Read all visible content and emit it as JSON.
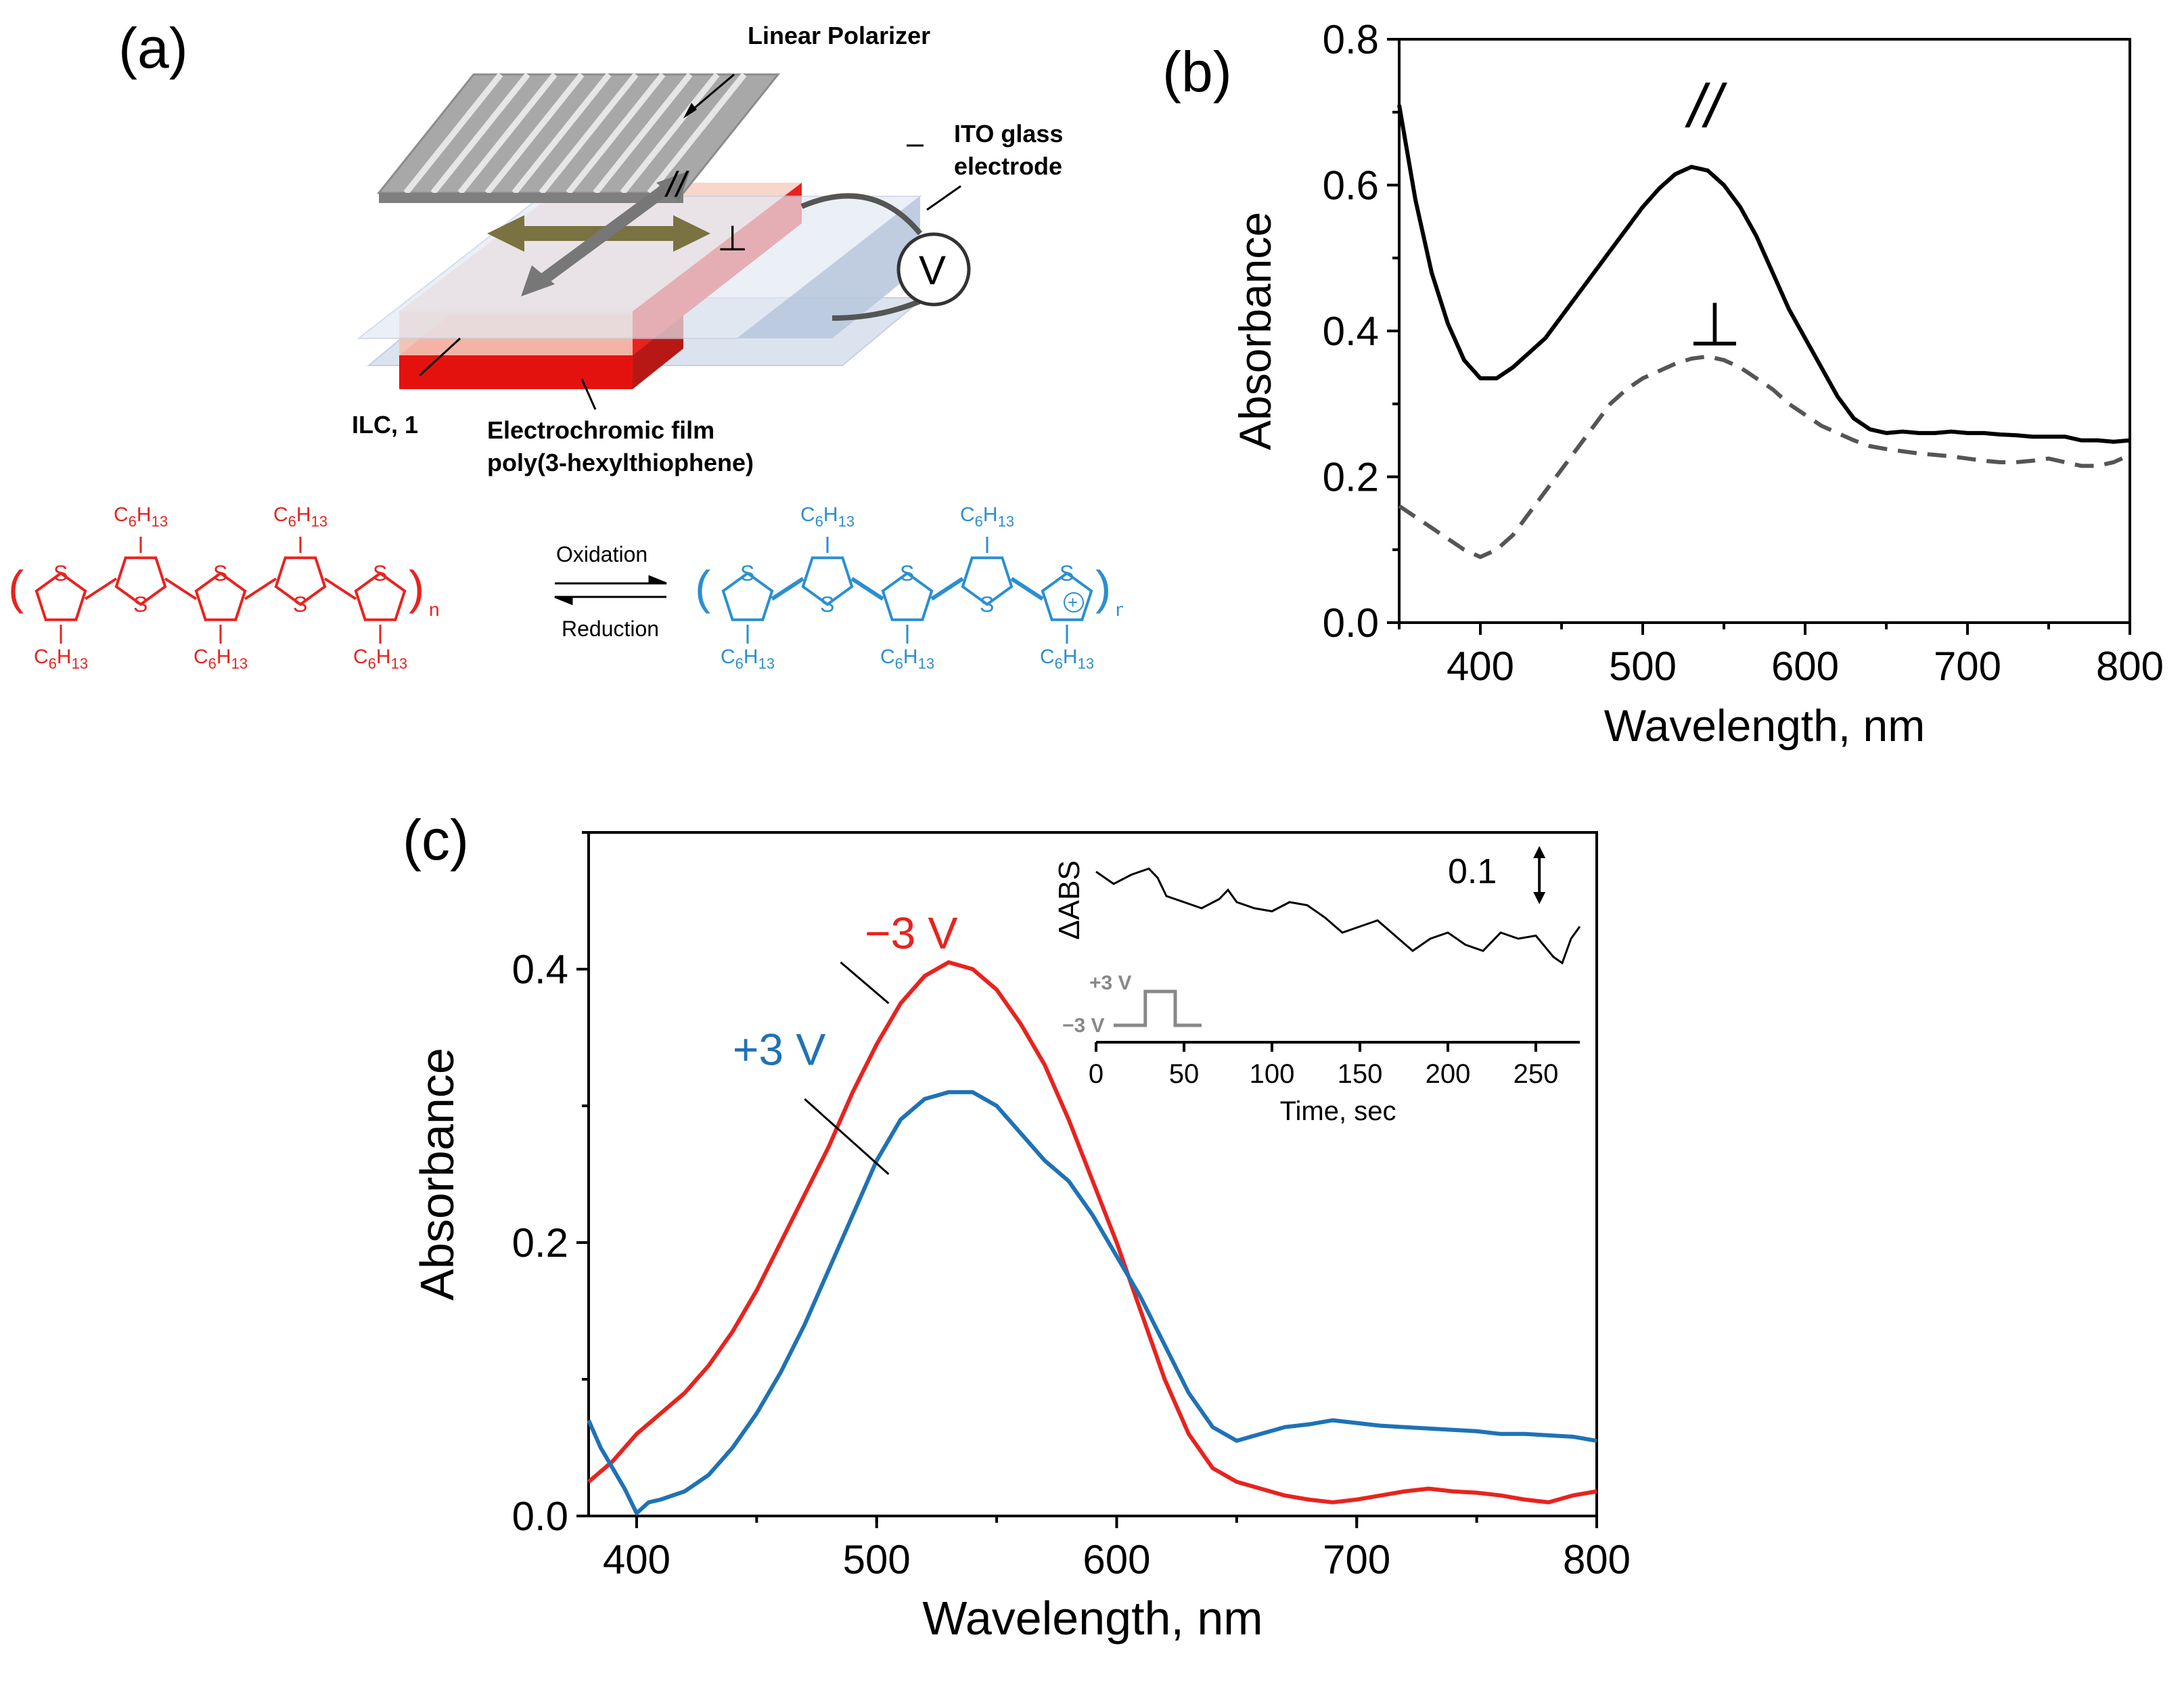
{
  "panel_a": {
    "label": "(a)",
    "labels": {
      "polarizer": "Linear Polarizer",
      "ito_line1": "ITO glass",
      "ito_line2": "electrode",
      "ilc": "ILC, 1",
      "film_line1": "Electrochromic film",
      "film_line2": "poly(3-hexylthiophene)",
      "parallel": "//",
      "perp": "⊥",
      "voltage": "V"
    },
    "scheme": {
      "oxidation": "Oxidation",
      "reduction": "Reduction",
      "substituent": "C6H13",
      "ring_atom": "S",
      "repeat": "n",
      "charge": "+"
    },
    "colors": {
      "neutral": "#e8231f",
      "oxidized": "#2a8fd0",
      "red_film": "#e8231f"
    }
  },
  "chart_data": [
    {
      "id": "b",
      "type": "line",
      "panel_label": "(b)",
      "xlabel": "Wavelength, nm",
      "ylabel": "Absorbance",
      "xlim": [
        350,
        800
      ],
      "ylim": [
        0.0,
        0.8
      ],
      "xticks": [
        "400",
        "500",
        "600",
        "700",
        "800"
      ],
      "yticks": [
        "0.0",
        "0.2",
        "0.4",
        "0.6",
        "0.8"
      ],
      "annotations": {
        "parallel": "//",
        "perp": "⊥"
      },
      "series": [
        {
          "name": "parallel",
          "color": "#000000",
          "dash": "solid",
          "x": [
            350,
            360,
            370,
            380,
            390,
            400,
            410,
            420,
            430,
            440,
            450,
            460,
            470,
            480,
            490,
            500,
            510,
            520,
            530,
            540,
            550,
            560,
            570,
            580,
            590,
            600,
            610,
            620,
            630,
            640,
            650,
            660,
            670,
            680,
            690,
            700,
            710,
            720,
            730,
            740,
            750,
            760,
            770,
            780,
            790,
            800
          ],
          "y": [
            0.71,
            0.58,
            0.48,
            0.41,
            0.36,
            0.335,
            0.335,
            0.35,
            0.37,
            0.39,
            0.42,
            0.45,
            0.48,
            0.51,
            0.54,
            0.57,
            0.595,
            0.615,
            0.625,
            0.62,
            0.6,
            0.57,
            0.53,
            0.48,
            0.43,
            0.39,
            0.35,
            0.31,
            0.28,
            0.265,
            0.26,
            0.262,
            0.26,
            0.26,
            0.262,
            0.26,
            0.26,
            0.258,
            0.257,
            0.255,
            0.255,
            0.255,
            0.25,
            0.25,
            0.248,
            0.25
          ]
        },
        {
          "name": "perpendicular",
          "color": "#555555",
          "dash": "dashed",
          "x": [
            350,
            360,
            370,
            380,
            390,
            400,
            410,
            420,
            430,
            440,
            450,
            460,
            470,
            480,
            490,
            500,
            510,
            520,
            530,
            540,
            550,
            560,
            570,
            580,
            590,
            600,
            610,
            620,
            630,
            640,
            650,
            660,
            670,
            680,
            690,
            700,
            710,
            720,
            730,
            740,
            750,
            760,
            770,
            780,
            790,
            800
          ],
          "y": [
            0.16,
            0.145,
            0.13,
            0.115,
            0.1,
            0.09,
            0.1,
            0.12,
            0.15,
            0.18,
            0.21,
            0.24,
            0.27,
            0.3,
            0.32,
            0.335,
            0.345,
            0.355,
            0.362,
            0.365,
            0.36,
            0.35,
            0.335,
            0.32,
            0.3,
            0.285,
            0.27,
            0.26,
            0.25,
            0.242,
            0.238,
            0.235,
            0.232,
            0.23,
            0.228,
            0.225,
            0.222,
            0.22,
            0.22,
            0.222,
            0.225,
            0.22,
            0.215,
            0.215,
            0.22,
            0.23
          ]
        }
      ]
    },
    {
      "id": "c",
      "type": "line",
      "panel_label": "(c)",
      "xlabel": "Wavelength, nm",
      "ylabel": "Absorbance",
      "xlim": [
        380,
        800
      ],
      "ylim": [
        0.0,
        0.5
      ],
      "xticks": [
        "400",
        "500",
        "600",
        "700",
        "800"
      ],
      "yticks": [
        "0.0",
        "0.2",
        "0.4"
      ],
      "series": [
        {
          "name": "−3 V",
          "color": "#e8231f",
          "x": [
            380,
            390,
            400,
            410,
            420,
            430,
            440,
            450,
            460,
            470,
            480,
            490,
            500,
            510,
            520,
            530,
            540,
            550,
            560,
            570,
            580,
            590,
            600,
            610,
            620,
            630,
            640,
            650,
            660,
            670,
            680,
            690,
            700,
            710,
            720,
            730,
            740,
            750,
            760,
            770,
            780,
            790,
            800
          ],
          "y": [
            0.025,
            0.04,
            0.06,
            0.075,
            0.09,
            0.11,
            0.135,
            0.165,
            0.2,
            0.235,
            0.27,
            0.31,
            0.345,
            0.375,
            0.395,
            0.405,
            0.4,
            0.385,
            0.36,
            0.33,
            0.29,
            0.245,
            0.2,
            0.15,
            0.1,
            0.06,
            0.035,
            0.025,
            0.02,
            0.015,
            0.012,
            0.01,
            0.012,
            0.015,
            0.018,
            0.02,
            0.018,
            0.017,
            0.015,
            0.012,
            0.01,
            0.015,
            0.018
          ]
        },
        {
          "name": "+3 V",
          "color": "#1f72b5",
          "x": [
            380,
            385,
            390,
            395,
            400,
            405,
            410,
            420,
            430,
            440,
            450,
            460,
            470,
            480,
            490,
            500,
            510,
            520,
            530,
            540,
            550,
            560,
            570,
            580,
            590,
            600,
            610,
            620,
            630,
            640,
            650,
            660,
            670,
            680,
            690,
            700,
            710,
            720,
            730,
            740,
            750,
            760,
            770,
            780,
            790,
            800
          ],
          "y": [
            0.07,
            0.05,
            0.035,
            0.02,
            0.002,
            0.01,
            0.012,
            0.018,
            0.03,
            0.05,
            0.075,
            0.105,
            0.14,
            0.18,
            0.22,
            0.26,
            0.29,
            0.305,
            0.31,
            0.31,
            0.3,
            0.28,
            0.26,
            0.245,
            0.22,
            0.19,
            0.16,
            0.125,
            0.09,
            0.065,
            0.055,
            0.06,
            0.065,
            0.067,
            0.07,
            0.068,
            0.066,
            0.065,
            0.064,
            0.063,
            0.062,
            0.06,
            0.06,
            0.059,
            0.058,
            0.055
          ]
        }
      ],
      "annotations": {
        "minus": "−3 V",
        "plus": "+3 V"
      },
      "inset": {
        "type": "line",
        "xlabel": "Time, sec",
        "ylabel": "ΔABS",
        "xlim": [
          0,
          275
        ],
        "xticks": [
          "0",
          "50",
          "100",
          "150",
          "200",
          "250"
        ],
        "scale_bar": "0.1",
        "pulse_labels": {
          "high": "+3 V",
          "low": "−3 V"
        },
        "x": [
          0,
          10,
          20,
          30,
          35,
          40,
          50,
          60,
          70,
          75,
          80,
          90,
          100,
          110,
          120,
          130,
          140,
          150,
          160,
          170,
          180,
          190,
          200,
          210,
          220,
          230,
          240,
          250,
          260,
          265,
          270,
          275
        ],
        "y": [
          0.08,
          0.06,
          0.075,
          0.085,
          0.07,
          0.04,
          0.03,
          0.02,
          0.035,
          0.05,
          0.03,
          0.02,
          0.015,
          0.03,
          0.025,
          0.005,
          -0.02,
          -0.01,
          0.0,
          -0.025,
          -0.05,
          -0.03,
          -0.02,
          -0.04,
          -0.05,
          -0.02,
          -0.03,
          -0.025,
          -0.06,
          -0.07,
          -0.03,
          -0.01
        ]
      }
    }
  ]
}
